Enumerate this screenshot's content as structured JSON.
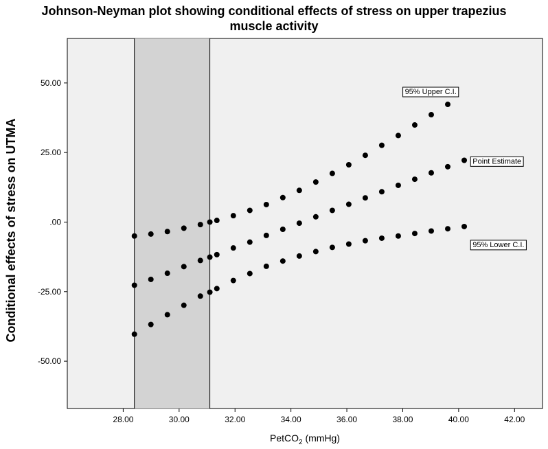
{
  "chart_data": {
    "type": "scatter",
    "title_line1": "Johnson-Neyman plot showing conditional effects of stress on upper trapezius",
    "title_line2": "muscle activity",
    "ylabel": "Conditional effects of stress on UTMA",
    "xlabel_prefix": "PetCO",
    "xlabel_sub": "2",
    "xlabel_suffix": " (mmHg)",
    "xlim": [
      26.0,
      43.0
    ],
    "ylim": [
      -67.0,
      66.0
    ],
    "x_ticks": [
      28,
      30,
      32,
      34,
      36,
      38,
      40,
      42
    ],
    "x_tick_labels": [
      "28.00",
      "30.00",
      "32.00",
      "34.00",
      "36.00",
      "38.00",
      "40.00",
      "42.00"
    ],
    "y_ticks": [
      50,
      25,
      0,
      -25,
      -50
    ],
    "y_tick_labels": [
      "50.00",
      "25.00",
      ".00",
      "-25.00",
      "-50.00"
    ],
    "shaded_region": [
      28.4,
      31.1
    ],
    "grid": false,
    "point_color": "#000000",
    "plot_background": "#f0f0f0",
    "region_fill": "#d3d3d3",
    "series": [
      {
        "name": "95% Upper C.I.",
        "x": [
          28.4,
          28.99,
          29.58,
          30.17,
          30.76,
          31.1,
          31.35,
          31.94,
          32.53,
          33.12,
          33.71,
          34.3,
          34.89,
          35.48,
          36.07,
          36.66,
          37.25,
          37.84,
          38.43,
          39.02,
          39.61
        ],
        "y": [
          -5,
          -4.3,
          -3.4,
          -2.2,
          -0.9,
          0.0,
          0.6,
          2.3,
          4.2,
          6.3,
          8.8,
          11.4,
          14.4,
          17.5,
          20.6,
          24.0,
          27.6,
          31.1,
          34.9,
          38.6,
          42.3
        ]
      },
      {
        "name": "Point Estimate",
        "x": [
          28.4,
          28.99,
          29.58,
          30.17,
          30.76,
          31.1,
          31.35,
          31.94,
          32.53,
          33.12,
          33.71,
          34.3,
          34.89,
          35.48,
          36.07,
          36.66,
          37.25,
          37.84,
          38.43,
          39.02,
          39.61,
          40.2
        ],
        "y": [
          -22.7,
          -20.6,
          -18.4,
          -16.0,
          -13.8,
          -12.6,
          -11.7,
          -9.3,
          -7.2,
          -4.8,
          -2.6,
          -0.4,
          1.9,
          4.2,
          6.4,
          8.7,
          10.9,
          13.2,
          15.4,
          17.7,
          19.9,
          22.2
        ]
      },
      {
        "name": "95% Lower C.I.",
        "x": [
          28.4,
          28.99,
          29.58,
          30.17,
          30.76,
          31.1,
          31.35,
          31.94,
          32.53,
          33.12,
          33.71,
          34.3,
          34.89,
          35.48,
          36.07,
          36.66,
          37.25,
          37.84,
          38.43,
          39.02,
          39.61,
          40.2
        ],
        "y": [
          -40.3,
          -36.8,
          -33.3,
          -29.9,
          -26.6,
          -25.2,
          -23.9,
          -21.0,
          -18.5,
          -15.9,
          -14.0,
          -12.2,
          -10.6,
          -9.1,
          -7.9,
          -6.7,
          -5.8,
          -5.0,
          -4.1,
          -3.2,
          -2.4,
          -1.6
        ]
      }
    ],
    "annotations": [
      {
        "text": "95% Upper C.I.",
        "x": 39.0,
        "y": 47.0,
        "anchor": "middle"
      },
      {
        "text": "Point Estimate",
        "x": 40.5,
        "y": 22.0,
        "anchor": "start"
      },
      {
        "text": "95% Lower C.I.",
        "x": 40.5,
        "y": -8.0,
        "anchor": "start"
      }
    ]
  }
}
